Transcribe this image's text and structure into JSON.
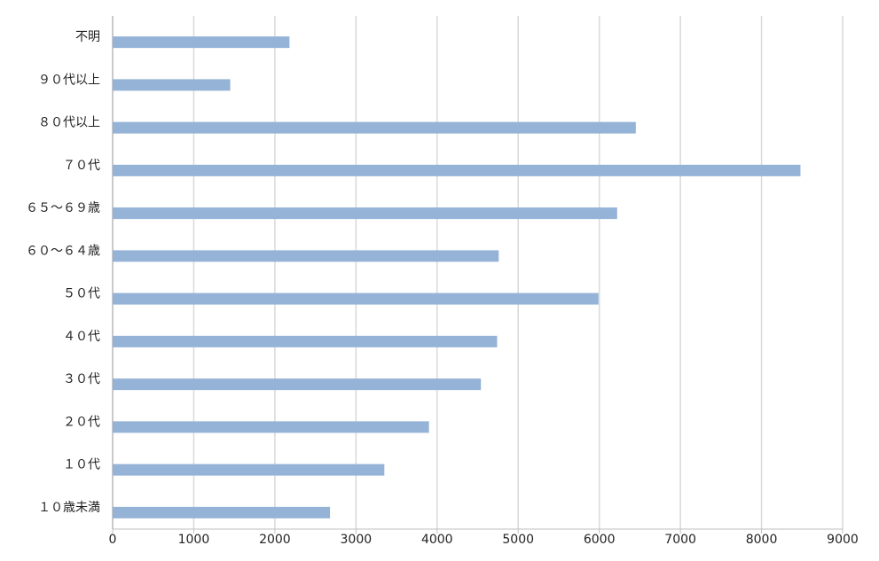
{
  "chart_data": {
    "type": "bar",
    "orientation": "horizontal",
    "categories": [
      "不明",
      "９０代以上",
      "８０代以上",
      "７０代",
      "６５～６９歳",
      "６０～６４歳",
      "５０代",
      "４０代",
      "３０代",
      "２０代",
      "１０代",
      "１０歳未満"
    ],
    "values": [
      2180,
      1450,
      6450,
      8480,
      6220,
      4760,
      5990,
      4740,
      4540,
      3900,
      3350,
      2680
    ],
    "color": "#95b3d7",
    "xlim": [
      0,
      9000
    ],
    "xticks": [
      0,
      1000,
      2000,
      3000,
      4000,
      5000,
      6000,
      7000,
      8000,
      9000
    ],
    "grid": true
  }
}
